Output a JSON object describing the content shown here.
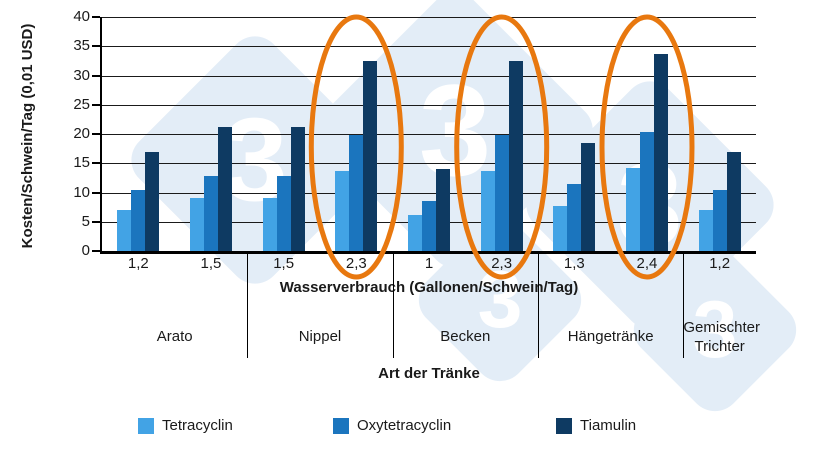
{
  "chart_data": {
    "type": "bar",
    "title": "",
    "ylabel": "Kosten/Schwein/Tag (0,01 USD)",
    "xlabel": "Wasserverbrauch (Gallonen/Schwein/Tag)",
    "xlabel2": "Art der Tränke",
    "ylim": [
      0,
      40
    ],
    "ytick_step": 5,
    "yticks": [
      0,
      5,
      10,
      15,
      20,
      25,
      30,
      35,
      40
    ],
    "grid": true,
    "legend_position": "bottom",
    "categories": [
      "1,2",
      "1,5",
      "1,5",
      "2,3",
      "1",
      "2,3",
      "1,3",
      "2,4",
      "1,2"
    ],
    "group_labels": [
      {
        "label": "Arato",
        "span": 2
      },
      {
        "label": "Nippel",
        "span": 2
      },
      {
        "label": "Becken",
        "span": 2
      },
      {
        "label": "Hängetränke",
        "span": 2
      },
      {
        "label": "Gemischter Trichter",
        "span": 1
      }
    ],
    "series": [
      {
        "name": "Tetracyclin",
        "color": "#42A3E5",
        "values": [
          7.0,
          9.0,
          9.0,
          13.7,
          6.2,
          13.7,
          7.7,
          14.2,
          7.0
        ]
      },
      {
        "name": "Oxytetracyclin",
        "color": "#1B75BE",
        "values": [
          10.4,
          12.9,
          12.9,
          19.9,
          8.6,
          19.9,
          11.4,
          20.4,
          10.4
        ]
      },
      {
        "name": "Tiamulin",
        "color": "#0E3A62",
        "values": [
          16.9,
          21.2,
          21.2,
          32.4,
          14.1,
          32.4,
          18.4,
          33.7,
          16.9
        ]
      }
    ],
    "highlighted_groups": [
      3,
      5,
      7
    ],
    "highlight_color": "#E8780F"
  },
  "watermark": {
    "glyph": "3",
    "color": "#E3EDF7"
  }
}
